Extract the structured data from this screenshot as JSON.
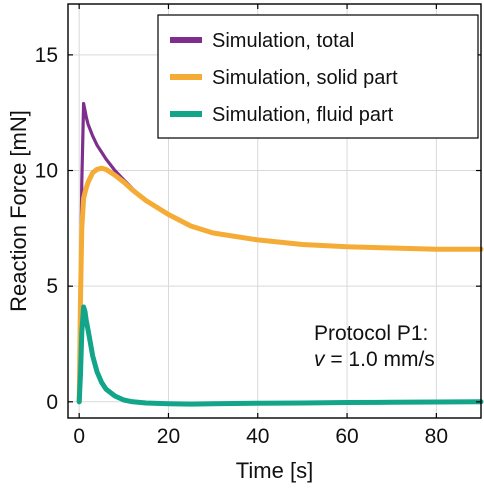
{
  "chart_data": {
    "type": "line",
    "title": "",
    "xlabel": "Time [s]",
    "ylabel": "Reaction Force [mN]",
    "xlim": [
      -2.5,
      90
    ],
    "ylim": [
      -0.7,
      17.2
    ],
    "xticks": [
      0,
      20,
      40,
      60,
      80
    ],
    "yticks": [
      0,
      5,
      10,
      15
    ],
    "grid": true,
    "legend_position": "top-right",
    "annotation": {
      "line1": "Protocol P1:",
      "line2_var": "v",
      "line2_rest": " = 1.0 mm/s",
      "position": "bottom-right"
    },
    "series": [
      {
        "name": "Simulation, total",
        "color": "#7E2F8E",
        "x": [
          0,
          0.3,
          0.6,
          1.0,
          1.3,
          1.6,
          2,
          3,
          4,
          5,
          6,
          8,
          10,
          12,
          15,
          20,
          25,
          30,
          40,
          50,
          60,
          70,
          80,
          90
        ],
        "y": [
          0,
          5.0,
          9.5,
          12.9,
          12.6,
          12.3,
          12.0,
          11.5,
          11.1,
          10.8,
          10.5,
          10.0,
          9.6,
          9.2,
          8.7,
          8.1,
          7.6,
          7.3,
          7.0,
          6.8,
          6.7,
          6.65,
          6.6,
          6.6
        ]
      },
      {
        "name": "Simulation, solid part",
        "color": "#F5AC37",
        "x": [
          0,
          0.3,
          0.6,
          1.0,
          1.5,
          2,
          3,
          4,
          5,
          6,
          8,
          10,
          12,
          15,
          20,
          25,
          30,
          40,
          50,
          60,
          70,
          80,
          90
        ],
        "y": [
          0,
          4.5,
          7.5,
          8.8,
          9.2,
          9.5,
          9.9,
          10.05,
          10.1,
          10.05,
          9.8,
          9.5,
          9.15,
          8.7,
          8.1,
          7.6,
          7.3,
          7.0,
          6.8,
          6.7,
          6.65,
          6.6,
          6.6
        ]
      },
      {
        "name": "Simulation, fluid part",
        "color": "#13A589",
        "x": [
          0,
          0.3,
          0.6,
          1.0,
          1.3,
          1.6,
          2,
          3,
          4,
          5,
          6,
          8,
          10,
          12,
          15,
          20,
          25,
          30,
          40,
          50,
          60,
          70,
          80,
          90
        ],
        "y": [
          0,
          1.2,
          3.0,
          4.1,
          3.9,
          3.5,
          3.1,
          2.0,
          1.3,
          0.85,
          0.55,
          0.25,
          0.08,
          0.0,
          -0.05,
          -0.08,
          -0.1,
          -0.08,
          -0.06,
          -0.05,
          -0.03,
          -0.02,
          -0.01,
          0.0
        ]
      }
    ]
  }
}
